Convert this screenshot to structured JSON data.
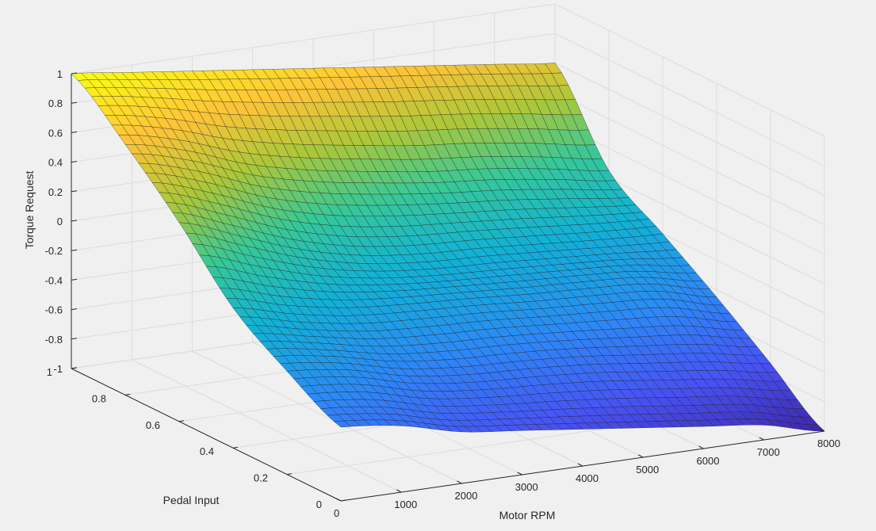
{
  "chart_data": {
    "type": "surface",
    "colormap": "parula",
    "background": "#f0f0f0",
    "grid": true,
    "xlabel": "Motor RPM",
    "ylabel": "Pedal Input",
    "zlabel": "Torque Request",
    "xlim": [
      0,
      8000
    ],
    "ylim": [
      0,
      1
    ],
    "zlim": [
      -1,
      1
    ],
    "x_ticks": [
      0,
      1000,
      2000,
      3000,
      4000,
      5000,
      6000,
      7000,
      8000
    ],
    "x_tick_labels": [
      "0",
      "1000",
      "2000",
      "3000",
      "4000",
      "5000",
      "6000",
      "7000",
      "8000"
    ],
    "y_ticks": [
      0,
      0.2,
      0.4,
      0.6,
      0.8,
      1
    ],
    "y_tick_labels": [
      "0",
      "0.2",
      "0.4",
      "0.6",
      "0.8",
      "1"
    ],
    "z_ticks": [
      -1,
      -0.8,
      -0.6,
      -0.4,
      -0.2,
      0,
      0.2,
      0.4,
      0.6,
      0.8,
      1
    ],
    "z_tick_labels": [
      "-1",
      "-0.8",
      "-0.6",
      "-0.4",
      "-0.2",
      "0",
      "0.2",
      "0.4",
      "0.6",
      "0.8",
      "1"
    ],
    "grid_x": [
      0,
      1000,
      2000,
      3000,
      4000,
      5000,
      6000,
      7000,
      8000
    ],
    "grid_y": [
      0,
      0.2,
      0.4,
      0.6,
      0.8,
      1
    ],
    "z_values": [
      [
        -0.5,
        -0.55,
        -0.65,
        -0.7,
        -0.75,
        -0.8,
        -0.85,
        -0.9,
        -1.0
      ],
      [
        -0.3,
        -0.35,
        -0.45,
        -0.5,
        -0.52,
        -0.55,
        -0.6,
        -0.65,
        -0.72
      ],
      [
        -0.05,
        -0.15,
        -0.22,
        -0.25,
        -0.27,
        -0.3,
        -0.32,
        -0.35,
        -0.45
      ],
      [
        0.35,
        0.2,
        0.05,
        -0.05,
        -0.1,
        -0.12,
        -0.15,
        -0.18,
        -0.2
      ],
      [
        0.7,
        0.6,
        0.45,
        0.35,
        0.28,
        0.22,
        0.18,
        0.12,
        0.05
      ],
      [
        1.0,
        0.95,
        0.9,
        0.85,
        0.8,
        0.75,
        0.7,
        0.65,
        0.6
      ]
    ]
  }
}
